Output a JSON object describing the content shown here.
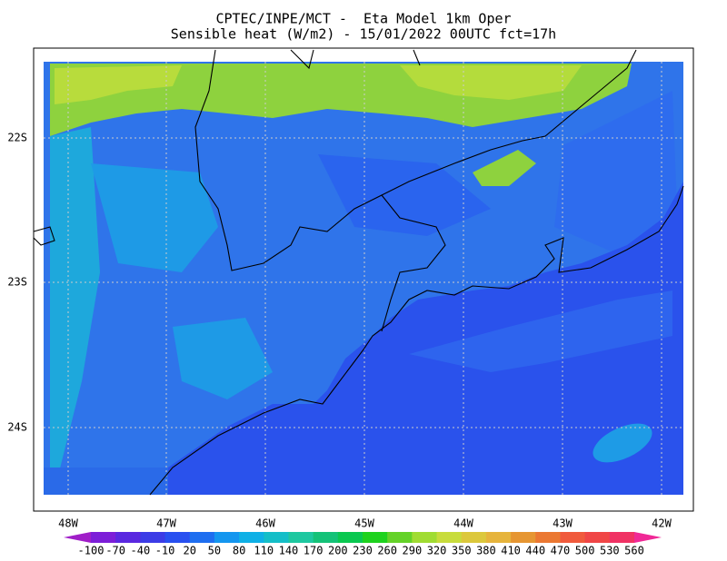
{
  "header": {
    "line1": "CPTEC/INPE/MCT -  Eta Model 1km Oper",
    "line2": "Sensible heat (W/m2) - 15/01/2022 00UTC fct=17h"
  },
  "lat_labels": [
    "22S",
    "23S",
    "24S"
  ],
  "lon_labels": [
    "48W",
    "47W",
    "46W",
    "45W",
    "44W",
    "43W",
    "42W"
  ],
  "colorbar": {
    "labels": [
      -100,
      -70,
      -40,
      -10,
      20,
      50,
      80,
      110,
      140,
      170,
      200,
      230,
      260,
      290,
      320,
      350,
      380,
      410,
      440,
      470,
      500,
      530,
      560
    ],
    "colors": [
      "#a01ec8",
      "#7c1ed8",
      "#5a28e0",
      "#3c3ce6",
      "#2850f0",
      "#1e6ef0",
      "#1496ef",
      "#0fb0e6",
      "#14bec8",
      "#1ec8a0",
      "#14c278",
      "#0ac850",
      "#1ed21e",
      "#64d228",
      "#a0dc32",
      "#c8dc3c",
      "#dcc83c",
      "#e6b43c",
      "#e69632",
      "#eb7832",
      "#f05a3c",
      "#f04646",
      "#f03264",
      "#f02896"
    ]
  }
}
